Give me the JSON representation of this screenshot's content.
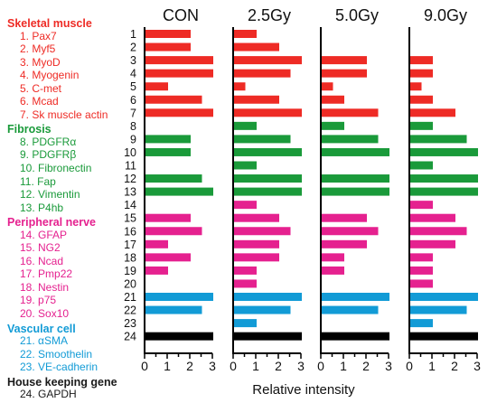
{
  "chart_data": {
    "type": "bar",
    "orientation": "horizontal",
    "xlabel": "Relative intensity",
    "xlim": [
      0,
      3
    ],
    "xticks": [
      "0",
      "1",
      "2",
      "3"
    ],
    "panels": [
      "CON",
      "2.5Gy",
      "5.0Gy",
      "9.0Gy"
    ],
    "row_numbers": [
      "1",
      "2",
      "3",
      "4",
      "5",
      "6",
      "7",
      "8",
      "9",
      "10",
      "11",
      "12",
      "13",
      "14",
      "15",
      "16",
      "17",
      "18",
      "19",
      "20",
      "21",
      "22",
      "23",
      "24"
    ],
    "groups": [
      {
        "name": "Skeletal muscle",
        "color": "#ee2b25",
        "labels": [
          "1. Pax7",
          "2. Myf5",
          "3. MyoD",
          "4. Myogenin",
          "5. C-met",
          "6. Mcad",
          "7. Sk muscle actin"
        ]
      },
      {
        "name": "Fibrosis",
        "color": "#1a9a3a",
        "labels": [
          "8. PDGFRα",
          "9. PDGFRβ",
          "10. Fibronectin",
          "11. Fap",
          "12. Vimentin",
          "13. P4hb"
        ]
      },
      {
        "name": "Peripheral nerve",
        "color": "#e5218f",
        "labels": [
          "14. GFAP",
          "15. NG2",
          "16. Ncad",
          "17. Pmp22",
          "18. Nestin",
          "19. p75",
          "20. Sox10"
        ]
      },
      {
        "name": "Vascular cell",
        "color": "#129bd6",
        "labels": [
          "21. αSMA",
          "22. Smoothelin",
          "23. VE-cadherin"
        ]
      },
      {
        "name": "House keeping gene",
        "color": "#000000",
        "labels": [
          "24. GAPDH"
        ]
      }
    ],
    "series": [
      {
        "name": "CON",
        "values": [
          2,
          2,
          3,
          3,
          1,
          2.5,
          3,
          0,
          2,
          2,
          0,
          2.5,
          3,
          0,
          2,
          2.5,
          1,
          2,
          1,
          0,
          3,
          2.5,
          0,
          3
        ]
      },
      {
        "name": "2.5Gy",
        "values": [
          1,
          2,
          3,
          2.5,
          0.5,
          2,
          3,
          1,
          2.5,
          3,
          1,
          3,
          3,
          1,
          2,
          2.5,
          2,
          2,
          1,
          1,
          3,
          2.5,
          1,
          3
        ]
      },
      {
        "name": "5.0Gy",
        "values": [
          0,
          0,
          2,
          2,
          0.5,
          1,
          2.5,
          1,
          2.5,
          3,
          0,
          3,
          3,
          0,
          2,
          2.5,
          2,
          1,
          1,
          0,
          3,
          2.5,
          0,
          3
        ]
      },
      {
        "name": "9.0Gy",
        "values": [
          0,
          0,
          1,
          1,
          0.5,
          1,
          2,
          1,
          2.5,
          3,
          1,
          3,
          3,
          1,
          2,
          2.5,
          2,
          1,
          1,
          1,
          3,
          2.5,
          1,
          3
        ]
      }
    ]
  }
}
